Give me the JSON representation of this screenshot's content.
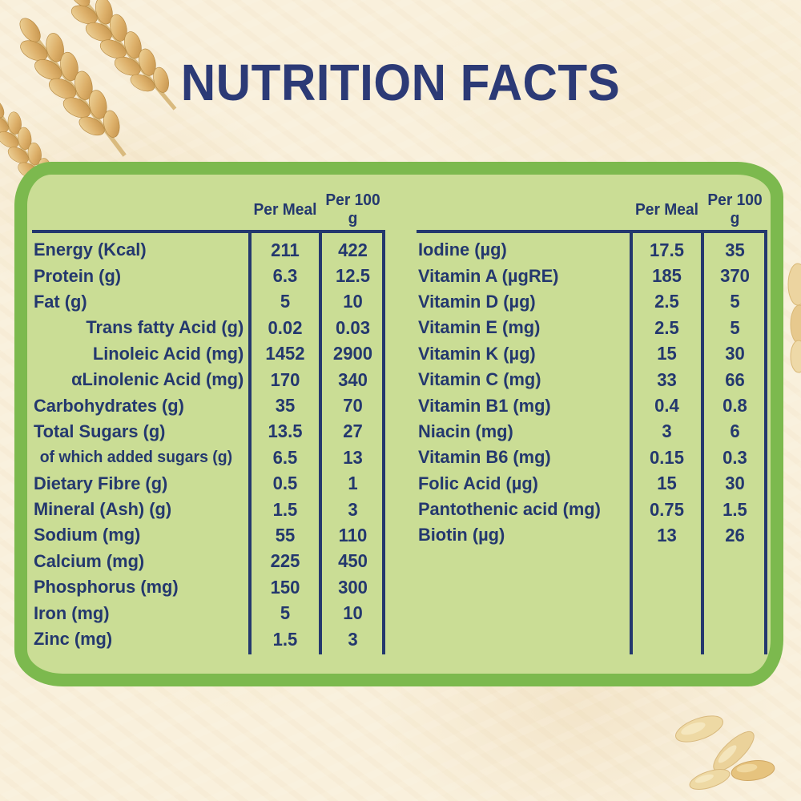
{
  "page": {
    "title": "NUTRITION FACTS"
  },
  "colors": {
    "title_navy": "#2c3a76",
    "table_navy": "#24386e",
    "panel_fill": "#cadd95",
    "panel_border_green": "#7cb94e",
    "background_cream": "#f9f0dc",
    "wheat_gold": "#ddb06a"
  },
  "panel": {
    "left_table": {
      "headers": {
        "per_meal": "Per Meal",
        "per_100g": "Per 100 g"
      },
      "rows": [
        {
          "label": "Energy (Kcal)",
          "per_meal": "211",
          "per_100g": "422",
          "style": "normal"
        },
        {
          "label": "Protein (g)",
          "per_meal": "6.3",
          "per_100g": "12.5",
          "style": "normal"
        },
        {
          "label": "Fat (g)",
          "per_meal": "5",
          "per_100g": "10",
          "style": "normal"
        },
        {
          "label": "Trans fatty Acid (g)",
          "per_meal": "0.02",
          "per_100g": "0.03",
          "style": "right"
        },
        {
          "label": "Linoleic Acid (mg)",
          "per_meal": "1452",
          "per_100g": "2900",
          "style": "right"
        },
        {
          "label": "αLinolenic Acid (mg)",
          "per_meal": "170",
          "per_100g": "340",
          "style": "right"
        },
        {
          "label": "Carbohydrates (g)",
          "per_meal": "35",
          "per_100g": "70",
          "style": "normal"
        },
        {
          "label": "Total Sugars (g)",
          "per_meal": "13.5",
          "per_100g": "27",
          "style": "normal"
        },
        {
          "label": "of which added sugars (g)",
          "per_meal": "6.5",
          "per_100g": "13",
          "style": "sub"
        },
        {
          "label": "Dietary Fibre (g)",
          "per_meal": "0.5",
          "per_100g": "1",
          "style": "normal"
        },
        {
          "label": "Mineral (Ash) (g)",
          "per_meal": "1.5",
          "per_100g": "3",
          "style": "normal"
        },
        {
          "label": "Sodium (mg)",
          "per_meal": "55",
          "per_100g": "110",
          "style": "normal"
        },
        {
          "label": "Calcium (mg)",
          "per_meal": "225",
          "per_100g": "450",
          "style": "normal"
        },
        {
          "label": "Phosphorus (mg)",
          "per_meal": "150",
          "per_100g": "300",
          "style": "normal"
        },
        {
          "label": "Iron (mg)",
          "per_meal": "5",
          "per_100g": "10",
          "style": "normal"
        },
        {
          "label": "Zinc (mg)",
          "per_meal": "1.5",
          "per_100g": "3",
          "style": "normal"
        }
      ]
    },
    "right_table": {
      "headers": {
        "per_meal": "Per Meal",
        "per_100g": "Per 100 g"
      },
      "rows": [
        {
          "label": "Iodine (µg)",
          "per_meal": "17.5",
          "per_100g": "35",
          "style": "normal"
        },
        {
          "label": "Vitamin A (µgRE)",
          "per_meal": "185",
          "per_100g": "370",
          "style": "normal"
        },
        {
          "label": "Vitamin D (µg)",
          "per_meal": "2.5",
          "per_100g": "5",
          "style": "normal"
        },
        {
          "label": "Vitamin E (mg)",
          "per_meal": "2.5",
          "per_100g": "5",
          "style": "normal"
        },
        {
          "label": "Vitamin K (µg)",
          "per_meal": "15",
          "per_100g": "30",
          "style": "normal"
        },
        {
          "label": "Vitamin C (mg)",
          "per_meal": "33",
          "per_100g": "66",
          "style": "normal"
        },
        {
          "label": "Vitamin B1 (mg)",
          "per_meal": "0.4",
          "per_100g": "0.8",
          "style": "normal"
        },
        {
          "label": "Niacin (mg)",
          "per_meal": "3",
          "per_100g": "6",
          "style": "normal"
        },
        {
          "label": "Vitamin B6 (mg)",
          "per_meal": "0.15",
          "per_100g": "0.3",
          "style": "normal"
        },
        {
          "label": "Folic Acid (µg)",
          "per_meal": "15",
          "per_100g": "30",
          "style": "normal"
        },
        {
          "label": "Pantothenic acid (mg)",
          "per_meal": "0.75",
          "per_100g": "1.5",
          "style": "normal"
        },
        {
          "label": "Biotin (µg)",
          "per_meal": "13",
          "per_100g": "26",
          "style": "normal"
        }
      ]
    }
  },
  "decorations": {
    "wheat": "wheat-ears",
    "seeds": "grain-seeds"
  }
}
